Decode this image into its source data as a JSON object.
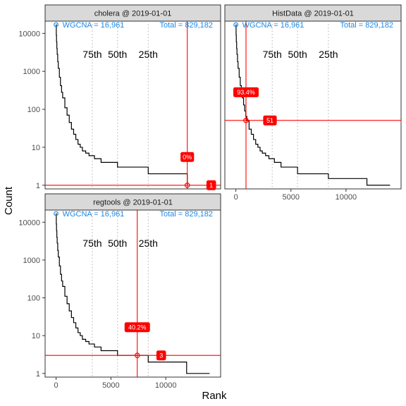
{
  "xlabel": "Rank",
  "ylabel": "Count",
  "chart_data": [
    {
      "type": "line",
      "title": "cholera @ 2019-01-01",
      "y_scale": "log10",
      "xlim": [
        -1000,
        15000
      ],
      "ylim": [
        0.8,
        21000
      ],
      "xticks": [
        0,
        5000,
        10000
      ],
      "xtick_labels": [
        "0",
        "5000",
        "10000"
      ],
      "show_xticks": false,
      "yticks": [
        1,
        10,
        100,
        1000,
        10000
      ],
      "ytick_labels": [
        "1",
        "10",
        "100",
        "1000",
        "10000"
      ],
      "show_yticks": true,
      "series": [
        {
          "x": [
            1,
            20,
            40,
            70,
            100,
            150,
            200,
            300,
            400,
            500,
            600,
            800,
            1000,
            1200,
            1400,
            1600,
            1800,
            2000,
            2200,
            2400,
            2700,
            3000,
            3500,
            4100,
            5600,
            8400,
            11960
          ],
          "y": [
            16961,
            9000,
            6000,
            4000,
            2800,
            1800,
            1200,
            700,
            420,
            280,
            200,
            110,
            70,
            45,
            30,
            22,
            16,
            12,
            10,
            8,
            7,
            6,
            5,
            4,
            3,
            2,
            1
          ]
        }
      ],
      "top_point": {
        "x": 0,
        "y": 16961
      },
      "top_label": "WGCNA = 16,961",
      "total_label": "Total = 829,182",
      "percentile_lines": [
        {
          "label": "75th",
          "x": 3300
        },
        {
          "label": "50th",
          "x": 5600
        },
        {
          "label": "25th",
          "x": 8400
        }
      ],
      "marker": {
        "x": 11960,
        "y": 1,
        "pct_label": "0%",
        "count_label": "1"
      }
    },
    {
      "type": "line",
      "title": "HistData @ 2019-01-01",
      "y_scale": "log10",
      "xlim": [
        -1000,
        15000
      ],
      "ylim": [
        0.8,
        21000
      ],
      "xticks": [
        0,
        5000,
        10000
      ],
      "xtick_labels": [
        "0",
        "5000",
        "10000"
      ],
      "show_xticks": true,
      "yticks": [
        1,
        10,
        100,
        1000,
        10000
      ],
      "ytick_labels": [
        "1",
        "10",
        "100",
        "1000",
        "10000"
      ],
      "show_yticks": false,
      "series": [
        {
          "x": [
            1,
            20,
            40,
            70,
            100,
            150,
            200,
            300,
            400,
            500,
            600,
            700,
            800,
            900,
            1000,
            1200,
            1400,
            1600,
            1800,
            2000,
            2200,
            2400,
            2700,
            3000,
            3500,
            4100,
            5600,
            8400,
            11900,
            14000
          ],
          "y": [
            16961,
            9000,
            6000,
            4000,
            2800,
            1800,
            1200,
            700,
            420,
            280,
            200,
            130,
            90,
            65,
            50,
            30,
            22,
            16,
            12,
            10,
            8,
            7,
            6,
            5,
            4,
            3,
            2,
            1.5,
            1,
            1
          ]
        }
      ],
      "top_point": {
        "x": 0,
        "y": 16961
      },
      "top_label": "WGCNA = 16,961",
      "total_label": "Total = 829,182",
      "percentile_lines": [
        {
          "label": "75th",
          "x": 3300
        },
        {
          "label": "50th",
          "x": 5600
        },
        {
          "label": "25th",
          "x": 8400
        }
      ],
      "marker": {
        "x": 920,
        "y": 51,
        "pct_label": "93.4%",
        "count_label": "51"
      }
    },
    {
      "type": "line",
      "title": "regtools @ 2019-01-01",
      "y_scale": "log10",
      "xlim": [
        -1000,
        15000
      ],
      "ylim": [
        0.8,
        21000
      ],
      "xticks": [
        0,
        5000,
        10000
      ],
      "xtick_labels": [
        "0",
        "5000",
        "10000"
      ],
      "show_xticks": true,
      "yticks": [
        1,
        10,
        100,
        1000,
        10000
      ],
      "ytick_labels": [
        "1",
        "10",
        "100",
        "1000",
        "10000"
      ],
      "show_yticks": true,
      "series": [
        {
          "x": [
            1,
            20,
            40,
            70,
            100,
            150,
            200,
            300,
            400,
            500,
            600,
            800,
            1000,
            1200,
            1400,
            1600,
            1800,
            2000,
            2200,
            2400,
            2700,
            3000,
            3500,
            4100,
            5600,
            8400,
            11900,
            14000
          ],
          "y": [
            16961,
            9000,
            6000,
            4000,
            2800,
            1800,
            1200,
            700,
            420,
            280,
            200,
            110,
            70,
            45,
            30,
            22,
            16,
            12,
            10,
            8,
            7,
            6,
            5,
            4,
            3,
            2,
            1,
            1
          ]
        }
      ],
      "top_point": {
        "x": 0,
        "y": 16961
      },
      "top_label": "WGCNA = 16,961",
      "total_label": "Total = 829,182",
      "percentile_lines": [
        {
          "label": "75th",
          "x": 3300
        },
        {
          "label": "50th",
          "x": 5600
        },
        {
          "label": "25th",
          "x": 8400
        }
      ],
      "marker": {
        "x": 7400,
        "y": 3,
        "pct_label": "40.2%",
        "count_label": "3"
      }
    }
  ],
  "colors": {
    "line": "#000000",
    "marker": "#ff0000",
    "label_fill": "#ff0000",
    "label_text": "#ffffff",
    "annotation": "#1e88e5",
    "strip_fill": "#d9d9d9",
    "panel_border": "#333333",
    "percentile_line": "#b0b0b0",
    "tick_text": "#4d4d4d"
  }
}
